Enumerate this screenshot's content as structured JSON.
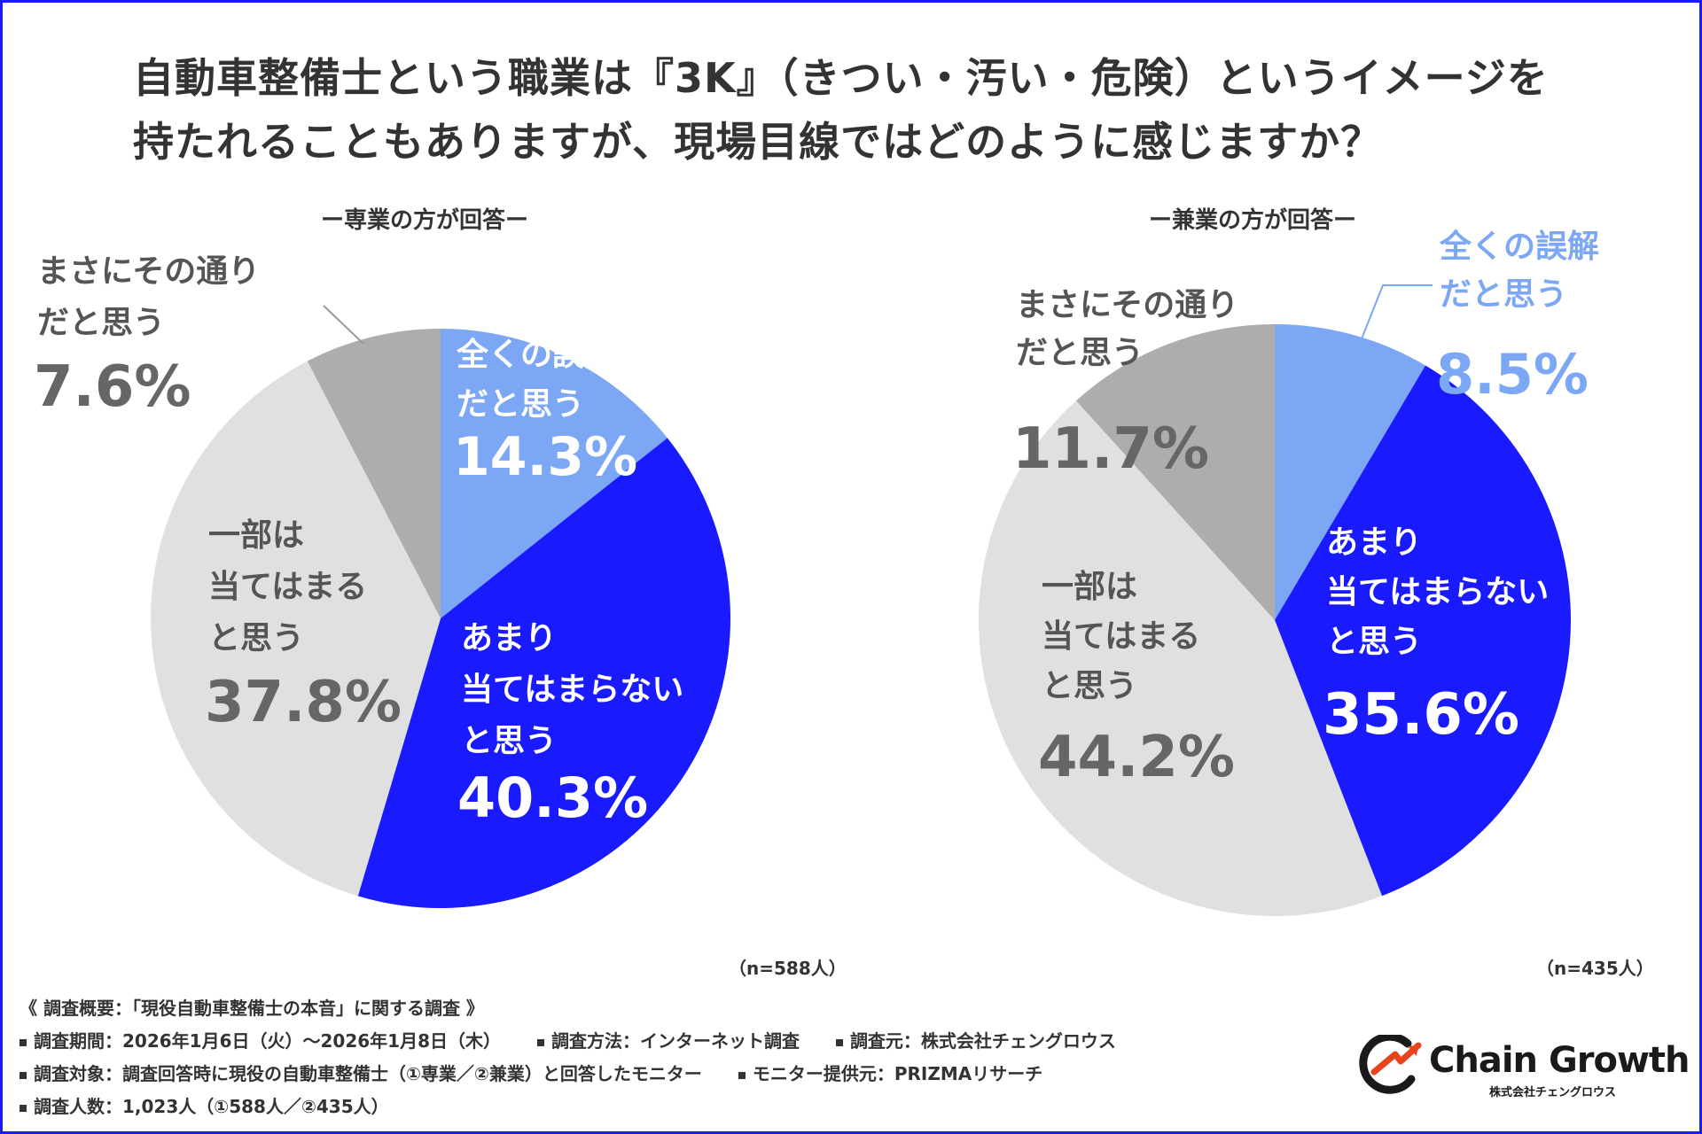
{
  "title_line1": "自動車整備士という職業は『3K』（きつい・汚い・危険）というイメージを",
  "title_line2": "持たれることもありますが、現場目線ではどのように感じますか？",
  "chart_data": [
    {
      "type": "pie",
      "subtitle": "ー専業の方が回答ー",
      "n_label": "（n=588人）",
      "categories": [
        "全くの誤解だと思う",
        "あまり当てはまらないと思う",
        "一部は当てはまると思う",
        "まさにその通りだと思う"
      ],
      "values": [
        14.3,
        40.3,
        37.8,
        7.6
      ],
      "value_labels": [
        "14.3%",
        "40.3%",
        "37.8%",
        "7.6%"
      ],
      "label_lines": [
        [
          "全くの誤解",
          "だと思う"
        ],
        [
          "あまり",
          "当てはまらない",
          "と思う"
        ],
        [
          "一部は",
          "当てはまる",
          "と思う"
        ],
        [
          "まさにその通り",
          "だと思う"
        ]
      ],
      "colors": [
        "#7ba7f5",
        "#1a1aff",
        "#e0e0e0",
        "#adadad"
      ]
    },
    {
      "type": "pie",
      "subtitle": "ー兼業の方が回答ー",
      "n_label": "（n=435人）",
      "categories": [
        "全くの誤解だと思う",
        "あまり当てはまらないと思う",
        "一部は当てはまると思う",
        "まさにその通りだと思う"
      ],
      "values": [
        8.5,
        35.6,
        44.2,
        11.7
      ],
      "value_labels": [
        "8.5%",
        "35.6%",
        "44.2%",
        "11.7%"
      ],
      "label_lines": [
        [
          "全くの誤解",
          "だと思う"
        ],
        [
          "あまり",
          "当てはまらない",
          "と思う"
        ],
        [
          "一部は",
          "当てはまる",
          "と思う"
        ],
        [
          "まさにその通り",
          "だと思う"
        ]
      ],
      "colors": [
        "#7ba7f5",
        "#1a1aff",
        "#e0e0e0",
        "#adadad"
      ]
    }
  ],
  "footer": {
    "heading": "《 調査概要：「現役自動車整備士の本音」に関する調査 》",
    "period": "調査期間：2026年1月6日（火）〜2026年1月8日（木）",
    "method": "調査方法：インターネット調査",
    "source": "調査元：株式会社チェングロウス",
    "target": "調査対象：調査回答時に現役の自動車整備士（①専業／②兼業）と回答したモニター",
    "provider": "モニター提供元：PRIZMAリサーチ",
    "count": "調査人数：1,023人（①588人／②435人）"
  },
  "logo": {
    "name": "Chain Growth",
    "sub": "株式会社チェングロウス"
  },
  "colors": {
    "frame": "#1a1aff",
    "text": "#333333",
    "value_dark": "#666666",
    "light_blue_text": "#7ba7f5"
  }
}
